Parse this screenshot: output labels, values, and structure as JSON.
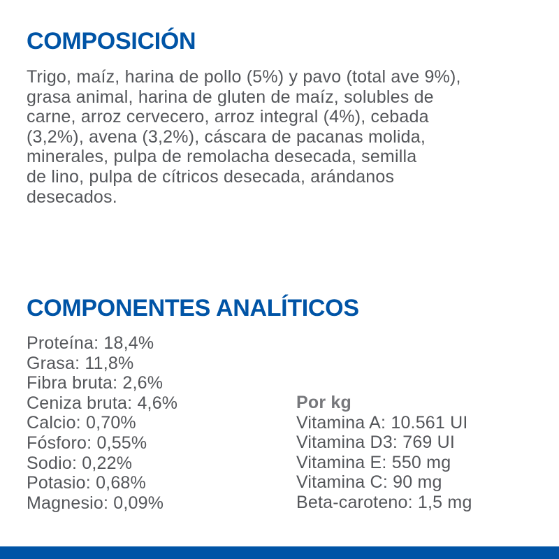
{
  "page": {
    "accent_blue": "#0054A6",
    "text_gray": "#54565A",
    "background": "#FFFFFF"
  },
  "composition": {
    "heading": "COMPOSICIÓN",
    "lines": [
      "Trigo, maíz, harina de pollo (5%) y pavo (total ave 9%),",
      "grasa animal, harina de gluten de maíz, solubles de",
      "carne, arroz cervecero, arroz integral (4%), cebada",
      "(3,2%), avena (3,2%), cáscara de pacanas molida,",
      "minerales, pulpa de remolacha desecada, semilla",
      "de lino, pulpa de cítricos desecada, arándanos",
      "desecados."
    ]
  },
  "analytical": {
    "heading": "COMPONENTES ANALÍTICOS",
    "nutrients": [
      "Proteína: 18,4%",
      "Grasa: 11,8%",
      "Fibra bruta: 2,6%",
      "Ceniza bruta: 4,6%",
      "Calcio: 0,70%",
      "Fósforo: 0,55%",
      "Sodio: 0,22%",
      "Potasio: 0,68%",
      "Magnesio: 0,09%"
    ],
    "per_kg_heading": "Por kg",
    "per_kg": [
      "Vitamina A: 10.561 UI",
      "Vitamina D3: 769 UI",
      "Vitamina E: 550 mg",
      "Vitamina C: 90 mg",
      "Beta-caroteno: 1,5 mg"
    ]
  }
}
